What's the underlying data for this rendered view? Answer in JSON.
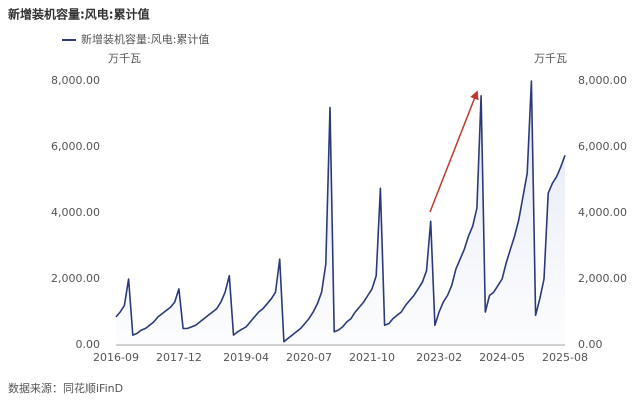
{
  "chart_data": {
    "type": "line",
    "title": "新增装机容量:风电:累计值",
    "y_label": "万千瓦",
    "y2_label": "万千瓦",
    "source": "数据来源：同花顺iFinD",
    "categories": [
      "2016-09",
      null,
      null,
      null,
      null,
      null,
      null,
      null,
      null,
      null,
      null,
      null,
      null,
      null,
      null,
      "2017-12",
      null,
      null,
      null,
      null,
      null,
      null,
      null,
      null,
      null,
      null,
      null,
      null,
      null,
      null,
      null,
      "2019-04",
      null,
      null,
      null,
      null,
      null,
      null,
      null,
      null,
      null,
      null,
      null,
      null,
      null,
      null,
      "2020-07",
      null,
      null,
      null,
      null,
      null,
      null,
      null,
      null,
      null,
      null,
      null,
      null,
      null,
      null,
      "2021-10",
      null,
      null,
      null,
      null,
      null,
      null,
      null,
      null,
      null,
      null,
      null,
      null,
      null,
      null,
      null,
      "2023-02",
      null,
      null,
      null,
      null,
      null,
      null,
      null,
      null,
      null,
      null,
      null,
      null,
      null,
      null,
      "2024-05",
      null,
      null,
      null,
      null,
      null,
      null,
      null,
      null,
      null,
      null,
      null,
      null,
      null,
      null,
      "2025-08"
    ],
    "series": [
      {
        "name": "新增装机容量:风电:累计值",
        "color": "#2b3a78",
        "values": [
          850,
          1000,
          1200,
          2000,
          300,
          350,
          450,
          500,
          600,
          700,
          850,
          950,
          1050,
          1150,
          1300,
          1700,
          500,
          500,
          550,
          600,
          700,
          800,
          900,
          1000,
          1100,
          1300,
          1600,
          2100,
          300,
          400,
          480,
          550,
          700,
          850,
          1000,
          1100,
          1250,
          1400,
          1600,
          2600,
          100,
          200,
          300,
          400,
          500,
          650,
          800,
          1000,
          1250,
          1600,
          2450,
          7200,
          400,
          450,
          550,
          700,
          800,
          1000,
          1150,
          1300,
          1500,
          1700,
          2100,
          4750,
          600,
          650,
          800,
          900,
          1000,
          1200,
          1350,
          1500,
          1700,
          1900,
          2250,
          3750,
          600,
          1000,
          1300,
          1500,
          1800,
          2300,
          2600,
          2900,
          3300,
          3600,
          4150,
          7550,
          1000,
          1500,
          1600,
          1800,
          2000,
          2500,
          2900,
          3300,
          3800,
          4500,
          5200,
          8000,
          900,
          1400,
          2000,
          4600,
          4900,
          5100,
          5400,
          5750
        ]
      }
    ],
    "ylim": [
      0,
      8000
    ],
    "yticks": [
      {
        "value": 0,
        "label": "0.00"
      },
      {
        "value": 2000,
        "label": "2,000.00"
      },
      {
        "value": 4000,
        "label": "4,000.00"
      },
      {
        "value": 6000,
        "label": "6,000.00"
      },
      {
        "value": 8000,
        "label": "8,000.00"
      }
    ],
    "y2lim": [
      0,
      8000
    ],
    "y2ticks": [
      {
        "value": 0,
        "label": "0.00"
      },
      {
        "value": 2000,
        "label": "2,000.00"
      },
      {
        "value": 4000,
        "label": "4,000.00"
      },
      {
        "value": 6000,
        "label": "6,000.00"
      },
      {
        "value": 8000,
        "label": "8,000.00"
      }
    ],
    "grid": false
  }
}
